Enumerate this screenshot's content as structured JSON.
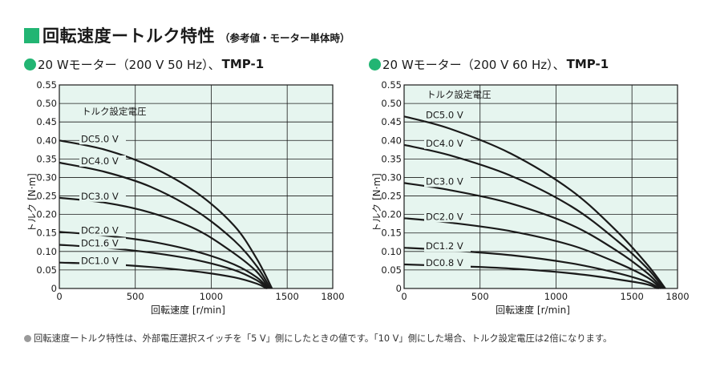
{
  "header": {
    "title": "回転速度ートルク特性",
    "note": "（参考値・モーター単体時）"
  },
  "footnote": "回転速度ートルク特性は、外部電圧選択スイッチを「5 V」側にしたときの値です。「10 V」側にした場合、トルク設定電圧は2倍になります。",
  "colors": {
    "accent": "#22b573",
    "plot_bg": "#e6f5ef",
    "grid": "#1a1a1a",
    "curve": "#1a1a1a"
  },
  "chart_data": [
    {
      "type": "line",
      "title_main": "20 Wモーター（200 V 50 Hz）、",
      "title_model": "TMP-1",
      "xlabel": "回転速度 [r/min]",
      "ylabel": "トルク [N·m]",
      "legend_title": "トルク設定電圧",
      "xlim": [
        0,
        1800
      ],
      "ylim": [
        0,
        0.55
      ],
      "xticks": [
        "0",
        "500",
        "1000",
        "1500",
        "1800"
      ],
      "yticks": [
        "0",
        "0.05",
        "0.10",
        "0.15",
        "0.20",
        "0.25",
        "0.30",
        "0.35",
        "0.40",
        "0.45",
        "0.50",
        "0.55"
      ],
      "grid": true,
      "series": [
        {
          "name": "DC5.0 V",
          "points": [
            [
              0,
              0.4
            ],
            [
              300,
              0.375
            ],
            [
              600,
              0.33
            ],
            [
              900,
              0.26
            ],
            [
              1150,
              0.17
            ],
            [
              1300,
              0.08
            ],
            [
              1400,
              0
            ]
          ]
        },
        {
          "name": "DC4.0 V",
          "points": [
            [
              0,
              0.34
            ],
            [
              300,
              0.315
            ],
            [
              600,
              0.275
            ],
            [
              900,
              0.21
            ],
            [
              1150,
              0.13
            ],
            [
              1300,
              0.06
            ],
            [
              1390,
              0
            ]
          ]
        },
        {
          "name": "DC3.0 V",
          "points": [
            [
              0,
              0.245
            ],
            [
              300,
              0.232
            ],
            [
              600,
              0.205
            ],
            [
              900,
              0.16
            ],
            [
              1150,
              0.095
            ],
            [
              1300,
              0.045
            ],
            [
              1380,
              0
            ]
          ]
        },
        {
          "name": "DC2.0 V",
          "points": [
            [
              0,
              0.153
            ],
            [
              300,
              0.143
            ],
            [
              600,
              0.127
            ],
            [
              900,
              0.1
            ],
            [
              1150,
              0.065
            ],
            [
              1300,
              0.03
            ],
            [
              1375,
              0
            ]
          ]
        },
        {
          "name": "DC1.6 V",
          "points": [
            [
              0,
              0.118
            ],
            [
              300,
              0.11
            ],
            [
              600,
              0.097
            ],
            [
              900,
              0.077
            ],
            [
              1150,
              0.05
            ],
            [
              1300,
              0.022
            ],
            [
              1370,
              0
            ]
          ]
        },
        {
          "name": "DC1.0 V",
          "points": [
            [
              0,
              0.07
            ],
            [
              300,
              0.066
            ],
            [
              600,
              0.058
            ],
            [
              900,
              0.046
            ],
            [
              1150,
              0.03
            ],
            [
              1300,
              0.013
            ],
            [
              1365,
              0
            ]
          ]
        }
      ]
    },
    {
      "type": "line",
      "title_main": "20 Wモーター（200 V 60 Hz）、",
      "title_model": "TMP-1",
      "xlabel": "回転速度 [r/min]",
      "ylabel": "トルク [N·m]",
      "legend_title": "トルク設定電圧",
      "xlim": [
        0,
        1800
      ],
      "ylim": [
        0,
        0.55
      ],
      "xticks": [
        "0",
        "500",
        "1000",
        "1500",
        "1800"
      ],
      "yticks": [
        "0",
        "0.05",
        "0.10",
        "0.15",
        "0.20",
        "0.25",
        "0.30",
        "0.35",
        "0.40",
        "0.45",
        "0.50",
        "0.55"
      ],
      "grid": true,
      "series": [
        {
          "name": "DC5.0 V",
          "points": [
            [
              0,
              0.465
            ],
            [
              300,
              0.432
            ],
            [
              700,
              0.365
            ],
            [
              1100,
              0.265
            ],
            [
              1400,
              0.155
            ],
            [
              1600,
              0.065
            ],
            [
              1720,
              0
            ]
          ]
        },
        {
          "name": "DC4.0 V",
          "points": [
            [
              0,
              0.388
            ],
            [
              300,
              0.36
            ],
            [
              700,
              0.305
            ],
            [
              1100,
              0.222
            ],
            [
              1400,
              0.13
            ],
            [
              1600,
              0.055
            ],
            [
              1710,
              0
            ]
          ]
        },
        {
          "name": "DC3.0 V",
          "points": [
            [
              0,
              0.285
            ],
            [
              300,
              0.266
            ],
            [
              700,
              0.23
            ],
            [
              1100,
              0.172
            ],
            [
              1400,
              0.102
            ],
            [
              1600,
              0.042
            ],
            [
              1700,
              0
            ]
          ]
        },
        {
          "name": "DC2.0 V",
          "points": [
            [
              0,
              0.19
            ],
            [
              300,
              0.178
            ],
            [
              700,
              0.155
            ],
            [
              1100,
              0.117
            ],
            [
              1400,
              0.07
            ],
            [
              1600,
              0.03
            ],
            [
              1690,
              0
            ]
          ]
        },
        {
          "name": "DC1.2 V",
          "points": [
            [
              0,
              0.11
            ],
            [
              300,
              0.103
            ],
            [
              700,
              0.09
            ],
            [
              1100,
              0.068
            ],
            [
              1400,
              0.042
            ],
            [
              1600,
              0.018
            ],
            [
              1680,
              0
            ]
          ]
        },
        {
          "name": "DC0.8 V",
          "points": [
            [
              0,
              0.065
            ],
            [
              300,
              0.061
            ],
            [
              700,
              0.054
            ],
            [
              1100,
              0.041
            ],
            [
              1400,
              0.025
            ],
            [
              1600,
              0.011
            ],
            [
              1670,
              0
            ]
          ]
        }
      ]
    }
  ]
}
